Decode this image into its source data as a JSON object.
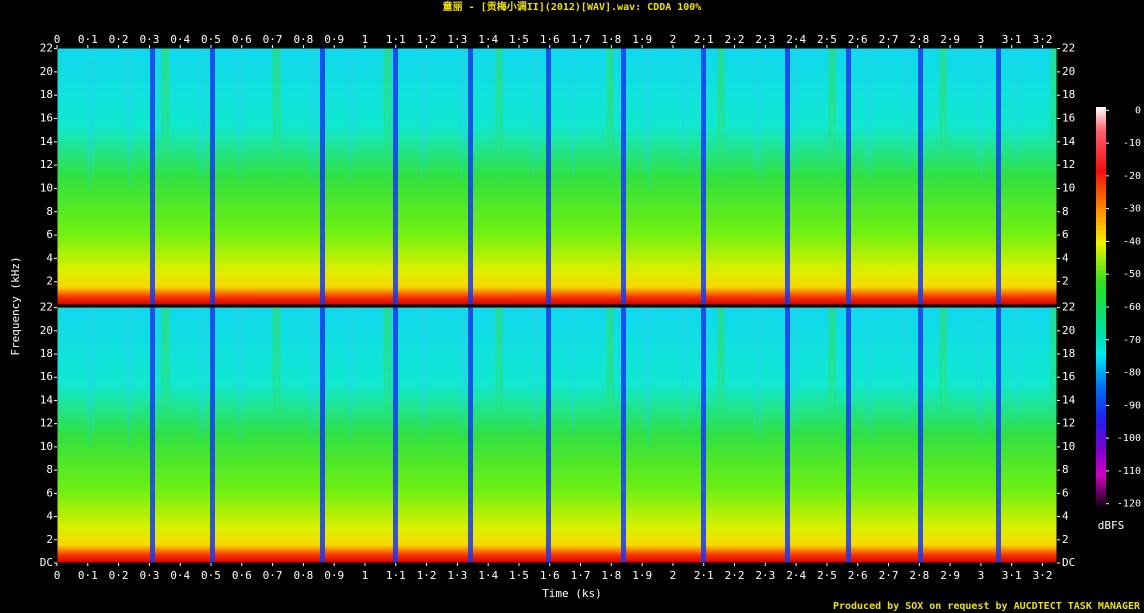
{
  "chart_data": {
    "type": "spectrogram",
    "title": "童丽 - [贡梅小调II](2012)[WAV].wav: CDDA 100%",
    "footer": "Produced by SOX on request by AUCDTECT TASK MANAGER",
    "x_label": "Time (ks)",
    "y_label": "Frequency (kHz)",
    "xlim": [
      0,
      3.247
    ],
    "xticks": [
      0,
      {
        "value": 0.1,
        "label": "0·1"
      },
      {
        "value": 0.2,
        "label": "0·2"
      },
      {
        "value": 0.3,
        "label": "0·3"
      },
      {
        "value": 0.4,
        "label": "0·4"
      },
      {
        "value": 0.5,
        "label": "0·5"
      },
      {
        "value": 0.6,
        "label": "0·6"
      },
      {
        "value": 0.7,
        "label": "0·7"
      },
      {
        "value": 0.8,
        "label": "0·8"
      },
      {
        "value": 0.9,
        "label": "0·9"
      },
      1,
      {
        "value": 1.1,
        "label": "1·1"
      },
      {
        "value": 1.2,
        "label": "1·2"
      },
      {
        "value": 1.3,
        "label": "1·3"
      },
      {
        "value": 1.4,
        "label": "1·4"
      },
      {
        "value": 1.5,
        "label": "1·5"
      },
      {
        "value": 1.6,
        "label": "1·6"
      },
      {
        "value": 1.7,
        "label": "1·7"
      },
      {
        "value": 1.8,
        "label": "1·8"
      },
      {
        "value": 1.9,
        "label": "1·9"
      },
      2,
      {
        "value": 2.1,
        "label": "2·1"
      },
      {
        "value": 2.2,
        "label": "2·2"
      },
      {
        "value": 2.3,
        "label": "2·3"
      },
      {
        "value": 2.4,
        "label": "2·4"
      },
      {
        "value": 2.5,
        "label": "2·5"
      },
      {
        "value": 2.6,
        "label": "2·6"
      },
      {
        "value": 2.7,
        "label": "2·7"
      },
      {
        "value": 2.8,
        "label": "2·8"
      },
      {
        "value": 2.9,
        "label": "2·9"
      },
      3,
      {
        "value": 3.1,
        "label": "3·1"
      },
      {
        "value": 3.2,
        "label": "3·2"
      }
    ],
    "panels": [
      {
        "ylim": [
          0,
          22.05
        ],
        "yticks": [
          2,
          4,
          6,
          8,
          10,
          12,
          14,
          16,
          18,
          20,
          22
        ]
      },
      {
        "ylim": [
          0,
          22.05
        ],
        "yticks": [
          {
            "value": 0,
            "label": "DC"
          },
          2,
          4,
          6,
          8,
          10,
          12,
          14,
          16,
          18,
          20,
          22
        ]
      }
    ],
    "colorbar": {
      "label": "dBFS",
      "lim": [
        -121,
        1
      ],
      "ticks": [
        0,
        -10,
        -20,
        -30,
        -40,
        -50,
        -60,
        -70,
        -80,
        -90,
        -100,
        -110,
        -120
      ]
    }
  }
}
